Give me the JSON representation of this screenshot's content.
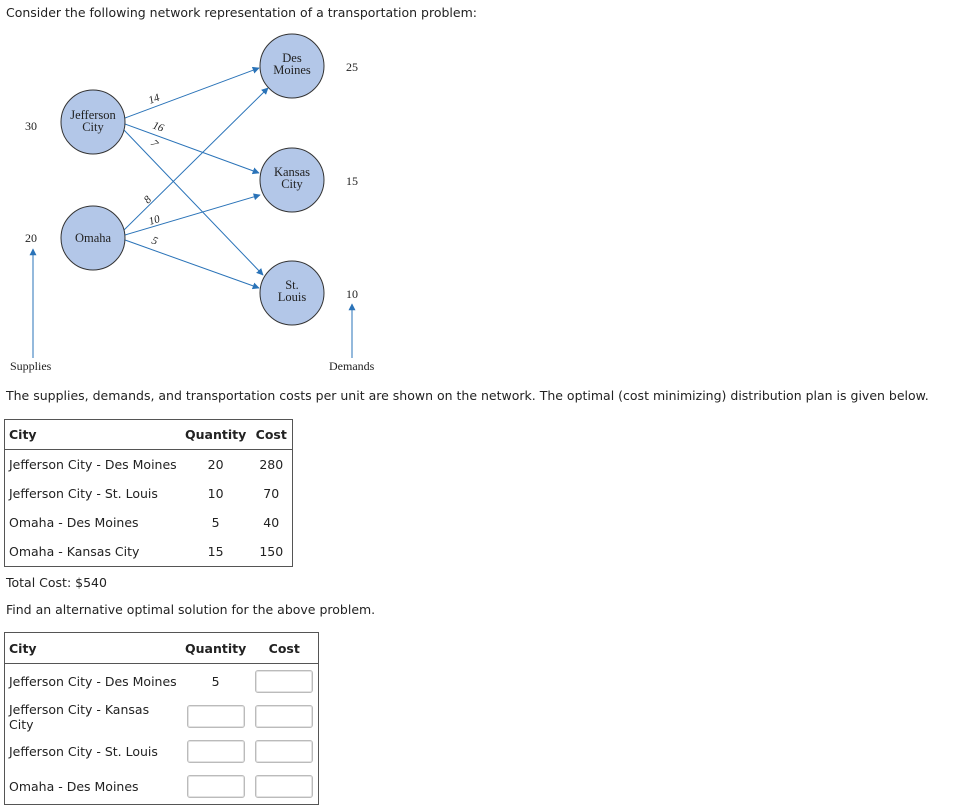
{
  "intro": "Consider the following network representation of a transportation problem:",
  "network": {
    "supply_nodes": [
      {
        "name": "Jefferson City",
        "line1": "Jefferson",
        "line2": "City",
        "supply": "30"
      },
      {
        "name": "Omaha",
        "line1": "Omaha",
        "line2": "",
        "supply": "20"
      }
    ],
    "demand_nodes": [
      {
        "name": "Des Moines",
        "line1": "Des",
        "line2": "Moines",
        "demand": "25"
      },
      {
        "name": "Kansas City",
        "line1": "Kansas",
        "line2": "City",
        "demand": "15"
      },
      {
        "name": "St. Louis",
        "line1": "St.",
        "line2": "Louis",
        "demand": "10"
      }
    ],
    "arc_costs": {
      "jc_dm": "14",
      "jc_kc": "16",
      "jc_sl": "7",
      "om_dm": "8",
      "om_kc": "10",
      "om_sl": "5"
    },
    "supplies_label": "Supplies",
    "demands_label": "Demands"
  },
  "network_desc": "The supplies, demands, and transportation costs per unit are shown on the network. The optimal (cost minimizing) distribution plan is given below.",
  "table1": {
    "headers": {
      "city": "City",
      "quantity": "Quantity",
      "cost": "Cost"
    },
    "rows": [
      {
        "city": "Jefferson City - Des Moines",
        "quantity": "20",
        "cost": "280"
      },
      {
        "city": "Jefferson City - St. Louis",
        "quantity": "10",
        "cost": "70"
      },
      {
        "city": "Omaha - Des Moines",
        "quantity": "5",
        "cost": "40"
      },
      {
        "city": "Omaha - Kansas City",
        "quantity": "15",
        "cost": "150"
      }
    ]
  },
  "total_cost": "Total Cost: $540",
  "question": "Find an alternative optimal solution for the above problem.",
  "table2": {
    "headers": {
      "city": "City",
      "quantity": "Quantity",
      "cost": "Cost"
    },
    "rows": [
      {
        "city": "Jefferson City - Des Moines",
        "quantity": "5",
        "cost": ""
      },
      {
        "city": "Jefferson City - Kansas City",
        "quantity": "",
        "cost": ""
      },
      {
        "city": "Jefferson City - St. Louis",
        "quantity": "",
        "cost": ""
      },
      {
        "city": "Omaha - Des Moines",
        "quantity": "",
        "cost": ""
      }
    ]
  },
  "colors": {
    "node_fill": "#b3c7e8",
    "arc": "#2a73b8",
    "node_stroke": "#333333"
  }
}
